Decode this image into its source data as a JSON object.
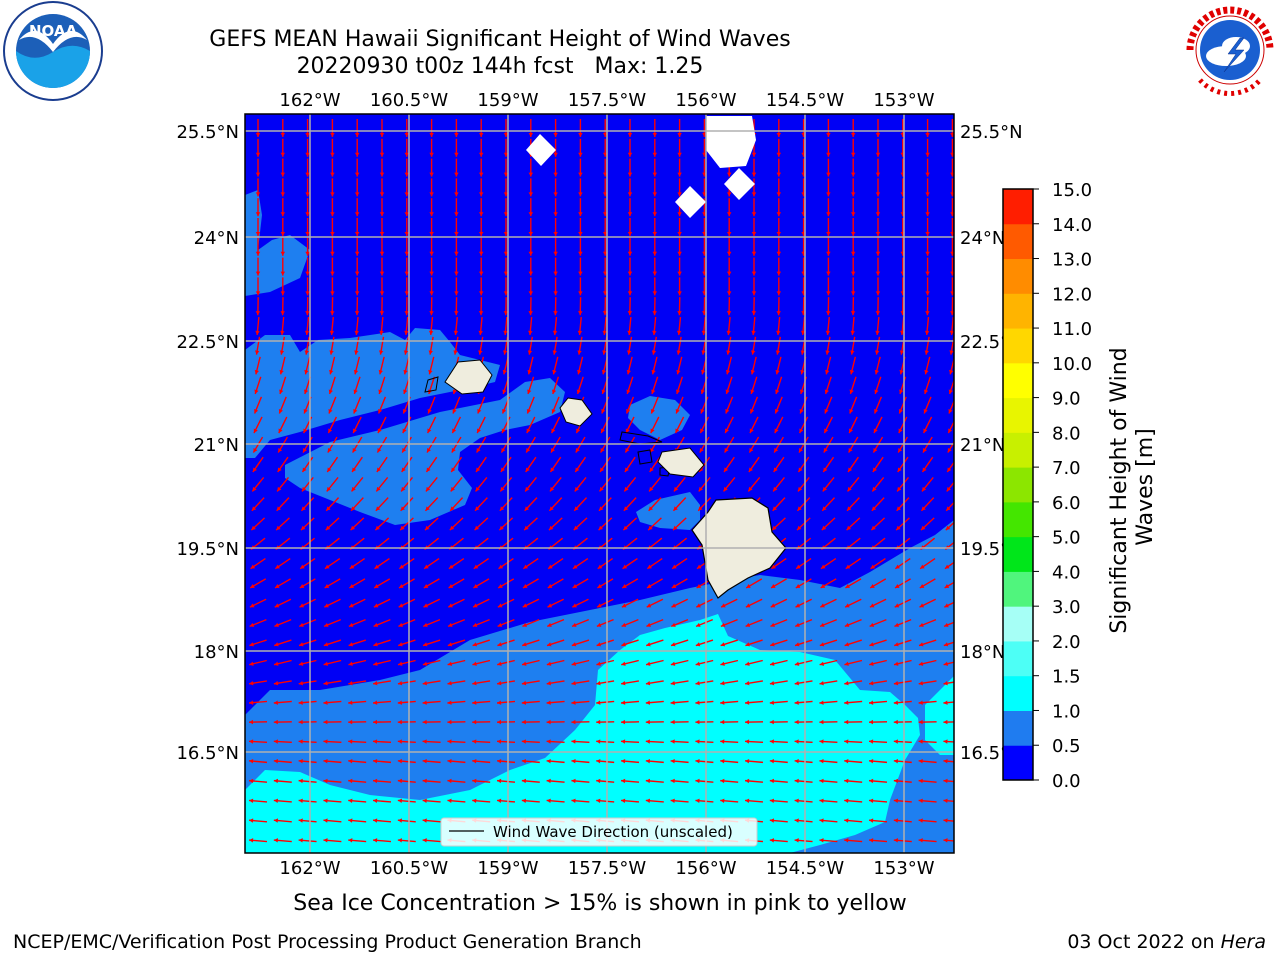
{
  "title": {
    "line1": "GEFS MEAN Hawaii Significant Height of Wind Waves",
    "line2_date": "20220930 t00z 144h fcst",
    "line2_max": "Max: 1.25"
  },
  "logos": {
    "left": {
      "icon": "noaa-logo",
      "text": "NOAA",
      "ring_text": "NATIONAL OCEANIC AND ATMOSPHERIC ADMINISTRATION · U.S. DEPARTMENT OF COMMERCE"
    },
    "right": {
      "icon": "nws-logo",
      "ring_text": "NATIONAL WEATHER SERVICE"
    }
  },
  "map": {
    "lon_ticks": [
      "162°W",
      "160.5°W",
      "159°W",
      "157.5°W",
      "156°W",
      "154.5°W",
      "153°W"
    ],
    "lat_ticks": [
      "25.5°N",
      "24°N",
      "22.5°N",
      "21°N",
      "19.5°N",
      "18°N",
      "16.5°N"
    ],
    "legend": "Wind Wave Direction (unscaled)",
    "colors": {
      "ocean_low": "#0000f5",
      "ocean_mid": "#1e7ff0",
      "ocean_high": "#00ffff",
      "land": "#efedde",
      "arrows": "#ff0000",
      "grid": "#b0b0b0"
    }
  },
  "colorbar": {
    "label": "Significant Height of Wind Waves [m]",
    "ticks": [
      "0.0",
      "0.5",
      "1.0",
      "1.5",
      "2.0",
      "3.0",
      "4.0",
      "5.0",
      "6.0",
      "7.0",
      "8.0",
      "9.0",
      "10.0",
      "11.0",
      "12.0",
      "13.0",
      "14.0",
      "15.0"
    ],
    "colors": [
      "#0000ff",
      "#1f7cf0",
      "#00ffff",
      "#4dfff6",
      "#a6fff6",
      "#50f57d",
      "#00e61a",
      "#44e600",
      "#8ce600",
      "#c8f000",
      "#e8f500",
      "#ffff00",
      "#ffd700",
      "#ffb400",
      "#ff8c00",
      "#ff5a00",
      "#ff1e00"
    ]
  },
  "caption": "Sea Ice Concentration > 15% is shown in pink to yellow",
  "footer": {
    "left": "NCEP/EMC/Verification Post Processing Product Generation Branch",
    "right_date": "03 Oct 2022 on",
    "right_host": "Hera"
  }
}
